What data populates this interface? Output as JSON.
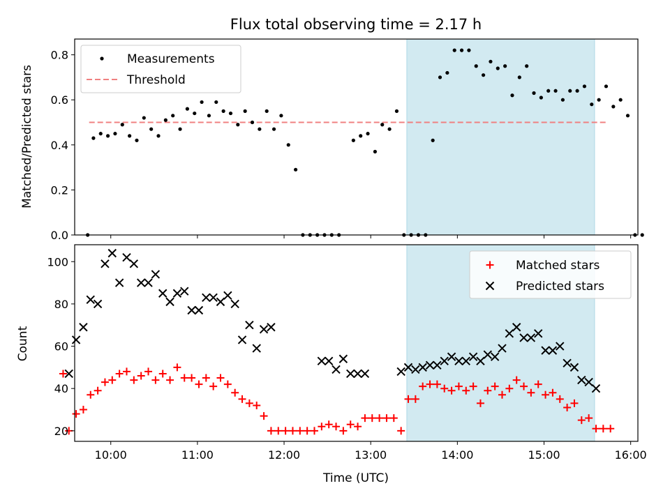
{
  "chart_data": [
    {
      "type": "scatter",
      "title": "Flux total observing time = 2.17 h",
      "ylabel": "Matched/Predicted stars",
      "xlim": [
        "09:35",
        "16:05"
      ],
      "ylim": [
        0,
        0.87
      ],
      "yticks": [
        "0.0",
        "0.2",
        "0.4",
        "0.6",
        "0.8"
      ],
      "grid": false,
      "legend": {
        "placement": "top-left",
        "entries": [
          "Measurements",
          "Threshold"
        ]
      },
      "threshold": {
        "name": "Threshold",
        "value": 0.5,
        "x": [
          "09:45",
          "15:43"
        ],
        "color": "#f08080"
      },
      "highlight_span": {
        "x": [
          "13:25",
          "15:35"
        ],
        "color": "#add8e6"
      },
      "series": [
        {
          "name": "Measurements",
          "color": "#000000",
          "points": [
            [
              "09:44",
              0.0
            ],
            [
              "09:48",
              0.43
            ],
            [
              "09:53",
              0.45
            ],
            [
              "09:58",
              0.44
            ],
            [
              "10:03",
              0.45
            ],
            [
              "10:08",
              0.49
            ],
            [
              "10:13",
              0.44
            ],
            [
              "10:18",
              0.42
            ],
            [
              "10:23",
              0.52
            ],
            [
              "10:28",
              0.47
            ],
            [
              "10:33",
              0.44
            ],
            [
              "10:38",
              0.51
            ],
            [
              "10:43",
              0.53
            ],
            [
              "10:48",
              0.47
            ],
            [
              "10:53",
              0.56
            ],
            [
              "10:58",
              0.54
            ],
            [
              "11:03",
              0.59
            ],
            [
              "11:08",
              0.53
            ],
            [
              "11:13",
              0.59
            ],
            [
              "11:18",
              0.55
            ],
            [
              "11:23",
              0.54
            ],
            [
              "11:28",
              0.49
            ],
            [
              "11:33",
              0.55
            ],
            [
              "11:38",
              0.5
            ],
            [
              "11:43",
              0.47
            ],
            [
              "11:48",
              0.55
            ],
            [
              "11:53",
              0.47
            ],
            [
              "11:58",
              0.53
            ],
            [
              "12:03",
              0.4
            ],
            [
              "12:08",
              0.29
            ],
            [
              "12:13",
              0.0
            ],
            [
              "12:18",
              0.0
            ],
            [
              "12:23",
              0.0
            ],
            [
              "12:28",
              0.0
            ],
            [
              "12:33",
              0.0
            ],
            [
              "12:38",
              0.0
            ],
            [
              "12:48",
              0.42
            ],
            [
              "12:53",
              0.44
            ],
            [
              "12:58",
              0.45
            ],
            [
              "13:03",
              0.37
            ],
            [
              "13:08",
              0.49
            ],
            [
              "13:13",
              0.47
            ],
            [
              "13:18",
              0.55
            ],
            [
              "13:23",
              0.0
            ],
            [
              "13:28",
              0.0
            ],
            [
              "13:33",
              0.0
            ],
            [
              "13:38",
              0.0
            ],
            [
              "13:43",
              0.42
            ],
            [
              "13:48",
              0.7
            ],
            [
              "13:53",
              0.72
            ],
            [
              "13:58",
              0.82
            ],
            [
              "14:03",
              0.82
            ],
            [
              "14:08",
              0.82
            ],
            [
              "14:13",
              0.75
            ],
            [
              "14:18",
              0.71
            ],
            [
              "14:23",
              0.77
            ],
            [
              "14:28",
              0.74
            ],
            [
              "14:33",
              0.75
            ],
            [
              "14:38",
              0.62
            ],
            [
              "14:43",
              0.7
            ],
            [
              "14:48",
              0.75
            ],
            [
              "14:53",
              0.63
            ],
            [
              "14:58",
              0.61
            ],
            [
              "15:03",
              0.64
            ],
            [
              "15:08",
              0.64
            ],
            [
              "15:13",
              0.6
            ],
            [
              "15:18",
              0.64
            ],
            [
              "15:23",
              0.64
            ],
            [
              "15:28",
              0.66
            ],
            [
              "15:33",
              0.58
            ],
            [
              "15:38",
              0.6
            ],
            [
              "15:43",
              0.66
            ],
            [
              "15:48",
              0.57
            ],
            [
              "15:53",
              0.6
            ],
            [
              "15:58",
              0.53
            ],
            [
              "16:03",
              0.0
            ],
            [
              "16:08",
              0.0
            ]
          ]
        }
      ]
    },
    {
      "type": "scatter",
      "xlabel": "Time (UTC)",
      "ylabel": "Count",
      "xlim": [
        "09:35",
        "16:05"
      ],
      "ylim": [
        15,
        108
      ],
      "xticks": [
        "10:00",
        "11:00",
        "12:00",
        "13:00",
        "14:00",
        "15:00",
        "16:00"
      ],
      "yticks": [
        "20",
        "40",
        "60",
        "80",
        "100"
      ],
      "grid": false,
      "legend": {
        "placement": "top-right",
        "entries": [
          "Matched stars",
          "Predicted stars"
        ]
      },
      "highlight_span": {
        "x": [
          "13:25",
          "15:35"
        ],
        "color": "#add8e6"
      },
      "series": [
        {
          "name": "Matched stars",
          "marker": "plus",
          "color": "#ff0000",
          "points": [
            [
              "09:27",
              47
            ],
            [
              "09:31",
              20
            ],
            [
              "09:36",
              28
            ],
            [
              "09:41",
              30
            ],
            [
              "09:46",
              37
            ],
            [
              "09:51",
              39
            ],
            [
              "09:56",
              43
            ],
            [
              "10:01",
              44
            ],
            [
              "10:06",
              47
            ],
            [
              "10:11",
              48
            ],
            [
              "10:16",
              44
            ],
            [
              "10:21",
              46
            ],
            [
              "10:26",
              48
            ],
            [
              "10:31",
              44
            ],
            [
              "10:36",
              47
            ],
            [
              "10:41",
              44
            ],
            [
              "10:46",
              50
            ],
            [
              "10:51",
              45
            ],
            [
              "10:56",
              45
            ],
            [
              "11:01",
              42
            ],
            [
              "11:06",
              45
            ],
            [
              "11:11",
              41
            ],
            [
              "11:16",
              45
            ],
            [
              "11:21",
              42
            ],
            [
              "11:26",
              38
            ],
            [
              "11:31",
              35
            ],
            [
              "11:36",
              33
            ],
            [
              "11:41",
              32
            ],
            [
              "11:46",
              27
            ],
            [
              "11:51",
              20
            ],
            [
              "11:56",
              20
            ],
            [
              "12:01",
              20
            ],
            [
              "12:06",
              20
            ],
            [
              "12:11",
              20
            ],
            [
              "12:16",
              20
            ],
            [
              "12:21",
              20
            ],
            [
              "12:26",
              22
            ],
            [
              "12:31",
              23
            ],
            [
              "12:36",
              22
            ],
            [
              "12:41",
              20
            ],
            [
              "12:46",
              23
            ],
            [
              "12:51",
              22
            ],
            [
              "12:56",
              26
            ],
            [
              "13:01",
              26
            ],
            [
              "13:06",
              26
            ],
            [
              "13:11",
              26
            ],
            [
              "13:16",
              26
            ],
            [
              "13:21",
              20
            ],
            [
              "13:26",
              35
            ],
            [
              "13:31",
              35
            ],
            [
              "13:36",
              41
            ],
            [
              "13:41",
              42
            ],
            [
              "13:46",
              42
            ],
            [
              "13:51",
              40
            ],
            [
              "13:56",
              39
            ],
            [
              "14:01",
              41
            ],
            [
              "14:06",
              39
            ],
            [
              "14:11",
              41
            ],
            [
              "14:16",
              33
            ],
            [
              "14:21",
              39
            ],
            [
              "14:26",
              41
            ],
            [
              "14:31",
              37
            ],
            [
              "14:36",
              40
            ],
            [
              "14:41",
              44
            ],
            [
              "14:46",
              41
            ],
            [
              "14:51",
              38
            ],
            [
              "14:56",
              42
            ],
            [
              "15:01",
              37
            ],
            [
              "15:06",
              38
            ],
            [
              "15:11",
              35
            ],
            [
              "15:16",
              31
            ],
            [
              "15:21",
              33
            ],
            [
              "15:26",
              25
            ],
            [
              "15:31",
              26
            ],
            [
              "15:36",
              21
            ],
            [
              "15:41",
              21
            ],
            [
              "15:46",
              21
            ]
          ]
        },
        {
          "name": "Predicted stars",
          "marker": "x",
          "color": "#000000",
          "points": [
            [
              "09:31",
              47
            ],
            [
              "09:36",
              63
            ],
            [
              "09:41",
              69
            ],
            [
              "09:46",
              82
            ],
            [
              "09:51",
              80
            ],
            [
              "09:56",
              99
            ],
            [
              "10:01",
              104
            ],
            [
              "10:06",
              90
            ],
            [
              "10:11",
              102
            ],
            [
              "10:16",
              99
            ],
            [
              "10:21",
              90
            ],
            [
              "10:26",
              90
            ],
            [
              "10:31",
              94
            ],
            [
              "10:36",
              85
            ],
            [
              "10:41",
              81
            ],
            [
              "10:46",
              85
            ],
            [
              "10:51",
              86
            ],
            [
              "10:56",
              77
            ],
            [
              "11:01",
              77
            ],
            [
              "11:06",
              83
            ],
            [
              "11:11",
              83
            ],
            [
              "11:16",
              81
            ],
            [
              "11:21",
              84
            ],
            [
              "11:26",
              80
            ],
            [
              "11:31",
              63
            ],
            [
              "11:36",
              70
            ],
            [
              "11:41",
              59
            ],
            [
              "11:46",
              68
            ],
            [
              "11:51",
              69
            ],
            [
              "12:26",
              53
            ],
            [
              "12:31",
              53
            ],
            [
              "12:36",
              49
            ],
            [
              "12:41",
              54
            ],
            [
              "12:46",
              47
            ],
            [
              "12:51",
              47
            ],
            [
              "12:56",
              47
            ],
            [
              "13:21",
              48
            ],
            [
              "13:26",
              50
            ],
            [
              "13:31",
              49
            ],
            [
              "13:36",
              50
            ],
            [
              "13:41",
              51
            ],
            [
              "13:46",
              51
            ],
            [
              "13:51",
              53
            ],
            [
              "13:56",
              55
            ],
            [
              "14:01",
              53
            ],
            [
              "14:06",
              53
            ],
            [
              "14:11",
              55
            ],
            [
              "14:16",
              53
            ],
            [
              "14:21",
              56
            ],
            [
              "14:26",
              55
            ],
            [
              "14:31",
              59
            ],
            [
              "14:36",
              66
            ],
            [
              "14:41",
              69
            ],
            [
              "14:46",
              64
            ],
            [
              "14:51",
              64
            ],
            [
              "14:56",
              66
            ],
            [
              "15:01",
              58
            ],
            [
              "15:06",
              58
            ],
            [
              "15:11",
              60
            ],
            [
              "15:16",
              52
            ],
            [
              "15:21",
              50
            ],
            [
              "15:26",
              44
            ],
            [
              "15:31",
              43
            ],
            [
              "15:36",
              40
            ]
          ]
        }
      ]
    }
  ]
}
